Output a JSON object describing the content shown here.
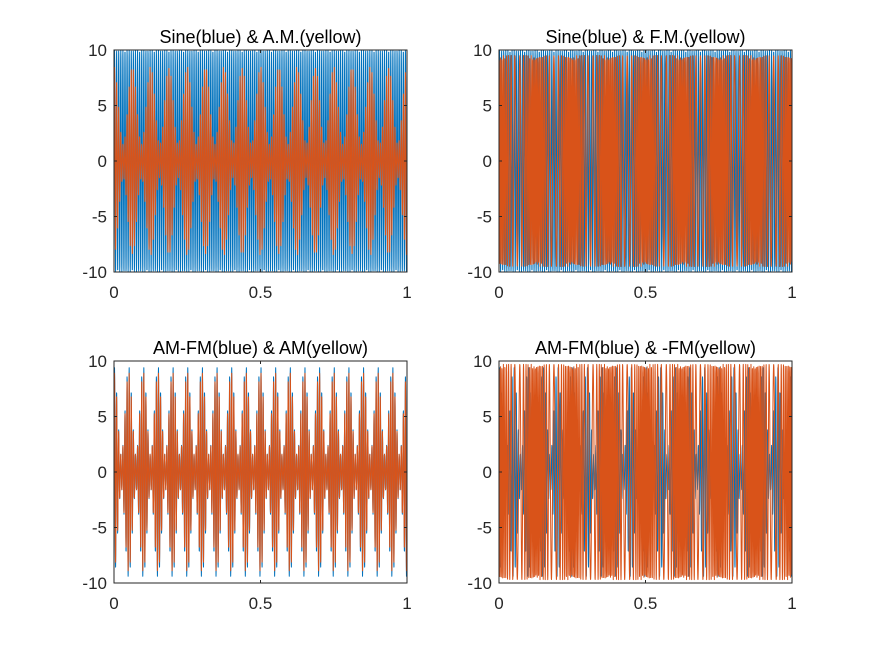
{
  "colors": {
    "blue": "#0072BD",
    "orange": "#D95319",
    "axis": "#262626"
  },
  "chart_data": [
    {
      "type": "line",
      "title": "Sine(blue) & A.M.(yellow)",
      "xlabel": "",
      "ylabel": "",
      "xlim": [
        0,
        1
      ],
      "ylim": [
        -10,
        10
      ],
      "xticks": [
        0,
        0.5,
        1
      ],
      "xtick_labels": [
        "0",
        "0.5",
        "1"
      ],
      "yticks": [
        -10,
        -5,
        0,
        5,
        10
      ],
      "ytick_labels": [
        "-10",
        "-5",
        "0",
        "5",
        "10"
      ],
      "grid": false,
      "series": [
        {
          "color": "#0072BD",
          "style": "carrier",
          "amplitude": 10,
          "cycles": 140
        },
        {
          "color": "#D95319",
          "style": "am",
          "amplitude_min": 1.5,
          "amplitude_max": 8.5,
          "envelope_cycles": 16,
          "cycles": 140
        }
      ]
    },
    {
      "type": "line",
      "title": "Sine(blue) & F.M.(yellow)",
      "xlabel": "",
      "ylabel": "",
      "xlim": [
        0,
        1
      ],
      "ylim": [
        -10,
        10
      ],
      "xticks": [
        0,
        0.5,
        1
      ],
      "xtick_labels": [
        "0",
        "0.5",
        "1"
      ],
      "yticks": [
        -10,
        -5,
        0,
        5,
        10
      ],
      "ytick_labels": [
        "-10",
        "-5",
        "0",
        "5",
        "10"
      ],
      "grid": false,
      "series": [
        {
          "color": "#0072BD",
          "style": "carrier",
          "amplitude": 10,
          "cycles": 140
        },
        {
          "color": "#D95319",
          "style": "fm",
          "amplitude": 9.5,
          "cycles": 140,
          "mod_cycles": 8
        }
      ]
    },
    {
      "type": "line",
      "title": "AM-FM(blue) & AM(yellow)",
      "xlabel": "",
      "ylabel": "",
      "xlim": [
        0,
        1
      ],
      "ylim": [
        -10,
        10
      ],
      "xticks": [
        0,
        0.5,
        1
      ],
      "xtick_labels": [
        "0",
        "0.5",
        "1"
      ],
      "yticks": [
        -10,
        -5,
        0,
        5,
        10
      ],
      "ytick_labels": [
        "-10",
        "-5",
        "0",
        "5",
        "10"
      ],
      "grid": false,
      "series": [
        {
          "color": "#0072BD",
          "style": "am",
          "amplitude_min": 1.5,
          "amplitude_max": 9.5,
          "envelope_cycles": 20,
          "cycles": 140
        },
        {
          "color": "#D95319",
          "style": "am",
          "amplitude_min": 1.5,
          "amplitude_max": 9,
          "envelope_cycles": 20,
          "cycles": 140
        }
      ]
    },
    {
      "type": "line",
      "title": "AM-FM(blue) & -FM(yellow)",
      "xlabel": "",
      "ylabel": "",
      "xlim": [
        0,
        1
      ],
      "ylim": [
        -10,
        10
      ],
      "xticks": [
        0,
        0.5,
        1
      ],
      "xtick_labels": [
        "0",
        "0.5",
        "1"
      ],
      "yticks": [
        -10,
        -5,
        0,
        5,
        10
      ],
      "ytick_labels": [
        "-10",
        "-5",
        "0",
        "5",
        "10"
      ],
      "grid": false,
      "series": [
        {
          "color": "#0072BD",
          "style": "am",
          "amplitude_min": 1.5,
          "amplitude_max": 9.5,
          "envelope_cycles": 20,
          "cycles": 140
        },
        {
          "color": "#D95319",
          "style": "fm",
          "amplitude": 9.7,
          "cycles": 140,
          "mod_cycles": 8
        }
      ]
    }
  ]
}
